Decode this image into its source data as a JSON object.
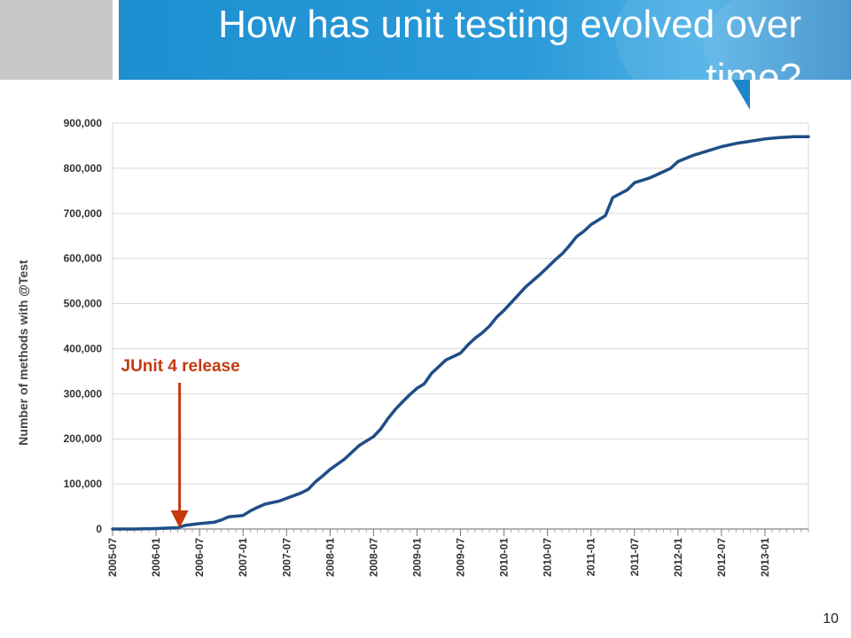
{
  "slide": {
    "title": "How has unit testing evolved over time?",
    "page_number": "10"
  },
  "colors": {
    "header_blue": "#1d8fd0",
    "line": "#1f4e86",
    "annotation": "#c53a0f",
    "grid": "#d9d9d9"
  },
  "chart_data": {
    "type": "line",
    "title": "",
    "xlabel": "",
    "ylabel": "Number of methods with @Test",
    "ylim": [
      0,
      900000
    ],
    "y_ticks": [
      "0",
      "100,000",
      "200,000",
      "300,000",
      "400,000",
      "500,000",
      "600,000",
      "700,000",
      "800,000",
      "900,000"
    ],
    "x_ticks": [
      "2005-07",
      "2006-01",
      "2006-07",
      "2007-01",
      "2007-07",
      "2008-01",
      "2008-07",
      "2009-01",
      "2009-07",
      "2010-01",
      "2010-07",
      "2011-01",
      "2011-07",
      "2012-01",
      "2012-07",
      "2013-01"
    ],
    "grid": true,
    "series": [
      {
        "x": [
          "2005-07",
          "2005-10",
          "2006-01",
          "2006-04",
          "2006-05",
          "2006-07",
          "2006-09",
          "2006-10",
          "2006-11",
          "2007-01",
          "2007-02",
          "2007-03",
          "2007-04",
          "2007-06",
          "2007-07",
          "2007-09",
          "2007-10",
          "2007-11",
          "2007-12",
          "2008-01",
          "2008-03",
          "2008-05",
          "2008-07",
          "2008-08",
          "2008-09",
          "2008-10",
          "2008-11",
          "2008-12",
          "2009-01",
          "2009-02",
          "2009-03",
          "2009-05",
          "2009-07",
          "2009-08",
          "2009-09",
          "2009-10",
          "2009-11",
          "2009-12",
          "2010-01",
          "2010-02",
          "2010-04",
          "2010-06",
          "2010-07",
          "2010-08",
          "2010-09",
          "2010-10",
          "2010-11",
          "2010-12",
          "2011-01",
          "2011-03",
          "2011-04",
          "2011-06",
          "2011-07",
          "2011-09",
          "2011-10",
          "2011-12",
          "2012-01",
          "2012-03",
          "2012-05",
          "2012-07",
          "2012-09",
          "2012-11",
          "2013-01",
          "2013-03",
          "2013-05",
          "2013-07"
        ],
        "values": [
          0,
          0,
          1000,
          3000,
          8000,
          12000,
          15000,
          20000,
          27000,
          30000,
          40000,
          48000,
          55000,
          62000,
          68000,
          80000,
          88000,
          105000,
          118000,
          132000,
          155000,
          185000,
          205000,
          222000,
          245000,
          265000,
          282000,
          298000,
          312000,
          322000,
          345000,
          375000,
          390000,
          408000,
          423000,
          435000,
          450000,
          470000,
          485000,
          502000,
          537000,
          565000,
          580000,
          596000,
          610000,
          628000,
          648000,
          660000,
          675000,
          695000,
          735000,
          752000,
          768000,
          778000,
          785000,
          800000,
          815000,
          828000,
          838000,
          848000,
          855000,
          860000,
          865000,
          868000,
          870000,
          870000
        ]
      }
    ],
    "annotations": [
      {
        "text": "JUnit 4 release",
        "x": "2006-04"
      }
    ]
  }
}
